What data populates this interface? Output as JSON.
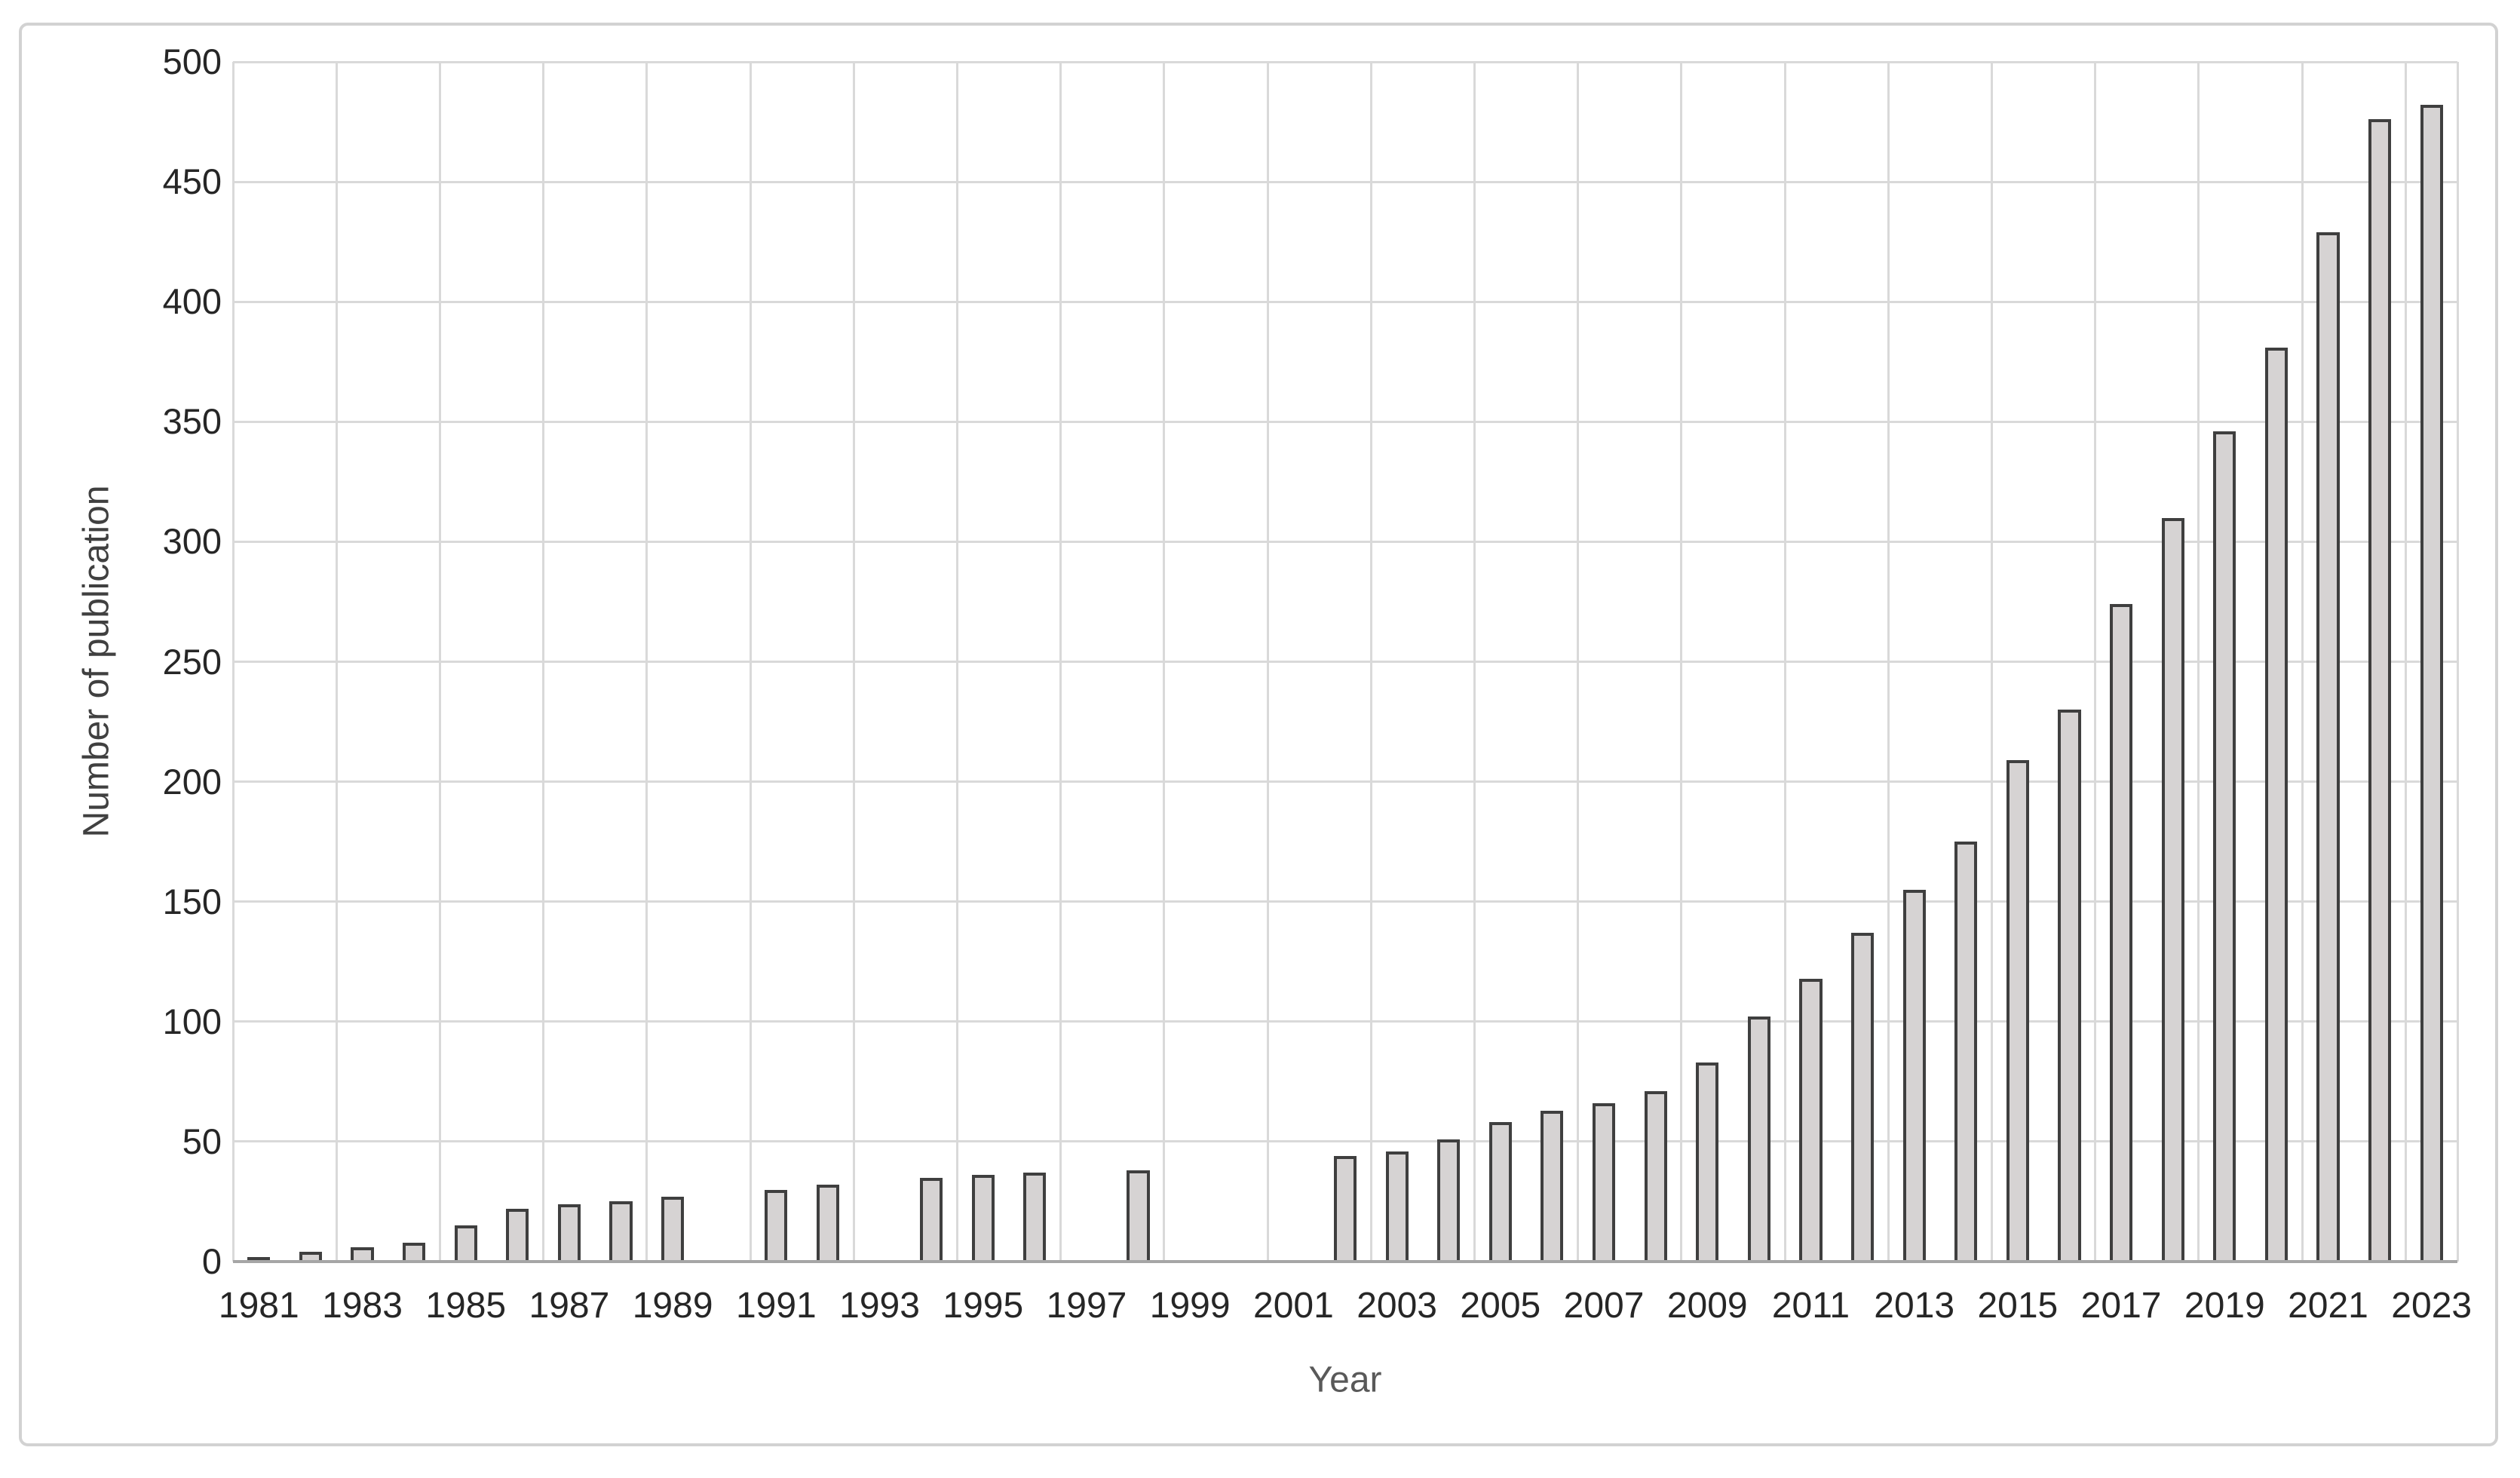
{
  "figure": {
    "background_color": "#ffffff",
    "frame_color": "#d2d2d2"
  },
  "chart_data": {
    "type": "bar",
    "title": "",
    "xlabel": "Year",
    "ylabel": "Number of publication",
    "x": [
      1981,
      1982,
      1983,
      1984,
      1985,
      1986,
      1987,
      1988,
      1989,
      1990,
      1991,
      1992,
      1993,
      1994,
      1995,
      1996,
      1997,
      1998,
      1999,
      2000,
      2001,
      2002,
      2003,
      2004,
      2005,
      2006,
      2007,
      2008,
      2009,
      2010,
      2011,
      2012,
      2013,
      2014,
      2015,
      2016,
      2017,
      2018,
      2019,
      2020,
      2021,
      2022,
      2023
    ],
    "values": [
      2,
      4,
      6,
      8,
      15,
      22,
      24,
      25,
      27,
      null,
      30,
      32,
      null,
      35,
      36,
      37,
      null,
      38,
      null,
      null,
      null,
      44,
      46,
      51,
      58,
      63,
      66,
      71,
      83,
      102,
      118,
      137,
      155,
      175,
      209,
      230,
      274,
      310,
      346,
      381,
      429,
      476,
      482
    ],
    "ylim": [
      0,
      500
    ],
    "ytick_step": 50,
    "ytick_labels": [
      "0",
      "50",
      "100",
      "150",
      "200",
      "250",
      "300",
      "350",
      "400",
      "450",
      "500"
    ],
    "xtick_labels": [
      "1981",
      "1983",
      "1985",
      "1987",
      "1989",
      "1991",
      "1993",
      "1995",
      "1997",
      "1999",
      "2001",
      "2003",
      "2005",
      "2007",
      "2009",
      "2011",
      "2013",
      "2015",
      "2017",
      "2019",
      "2021",
      "2023"
    ],
    "xtick_every_n_categories": 2,
    "grid": true,
    "legend": "none",
    "bar_fill_color": "#d6d3d3",
    "bar_border_color": "#3f3f3f",
    "gridline_color": "#d9d9d9",
    "axis_line_color": "#a6a6a6",
    "tick_label_color": "#262626",
    "y_title_color": "#404040",
    "x_title_color": "#595959"
  }
}
